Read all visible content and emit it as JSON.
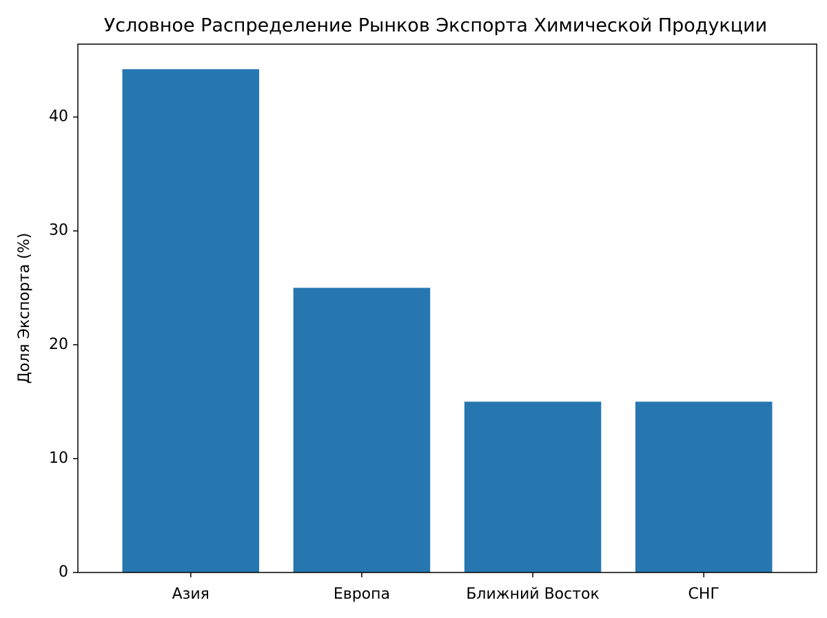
{
  "chart_data": {
    "type": "bar",
    "title": "Условное Распределение Рынков Экспорта Химической Продукции",
    "ylabel": "Доля Экспорта (%)",
    "categories": [
      "Азия",
      "Европа",
      "Ближний Восток",
      "СНГ"
    ],
    "values": [
      44.2,
      25,
      15,
      15
    ],
    "color": "#2677b0",
    "ylim": [
      0,
      46.4
    ],
    "yticks": [
      0,
      10,
      20,
      30,
      40
    ],
    "grid": false
  }
}
